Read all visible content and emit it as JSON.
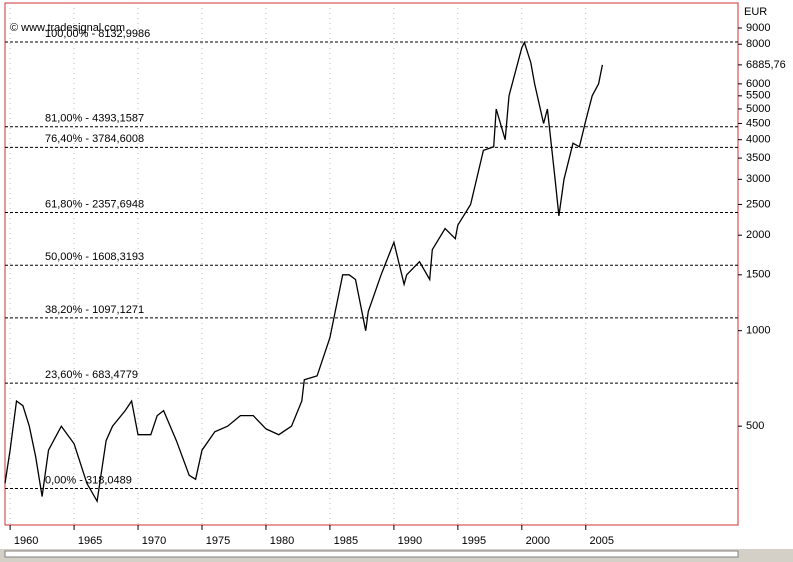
{
  "chart_data": {
    "type": "line",
    "log_y": true,
    "copyright": "© www.tradesignal.com",
    "y_axis_label": "EUR",
    "color": "#000000",
    "x": [
      1959.6,
      1960,
      1960.5,
      1961,
      1961.5,
      1962,
      1962.5,
      1963,
      1964,
      1965,
      1966,
      1966.8,
      1967.5,
      1968,
      1969,
      1969.5,
      1970,
      1971,
      1971.5,
      1972,
      1973,
      1974,
      1974.5,
      1975,
      1976,
      1977,
      1978,
      1979,
      1980,
      1981,
      1982,
      1982.8,
      1983,
      1984,
      1985,
      1986,
      1986.5,
      1987,
      1987.8,
      1988,
      1989,
      1990,
      1990.8,
      1991,
      1992,
      1992.8,
      1993,
      1994,
      1994.8,
      1995,
      1996,
      1997,
      1997.8,
      1998,
      1998.7,
      1999,
      2000,
      2000.2,
      2000.7,
      2001,
      2001.7,
      2002,
      2002.6,
      2002.9,
      2003.3,
      2004,
      2004.5,
      2005,
      2005.5,
      2006,
      2006.3
    ],
    "values": [
      330,
      420,
      600,
      580,
      500,
      400,
      300,
      420,
      500,
      440,
      330,
      290,
      450,
      500,
      560,
      600,
      470,
      470,
      540,
      560,
      450,
      350,
      340,
      420,
      480,
      500,
      540,
      540,
      490,
      470,
      500,
      600,
      700,
      720,
      950,
      1500,
      1500,
      1450,
      1000,
      1150,
      1500,
      1900,
      1400,
      1500,
      1650,
      1450,
      1800,
      2100,
      1950,
      2150,
      2500,
      3700,
      3800,
      5000,
      4000,
      5500,
      7800,
      8100,
      7000,
      6000,
      4500,
      5000,
      3000,
      2300,
      3000,
      3900,
      3800,
      4600,
      5500,
      6000,
      6885.76
    ],
    "last_price": {
      "value": 6885.76,
      "label": "6885,76"
    },
    "levels": [
      {
        "value": 8132.9986,
        "label": "100,00% - 8132,9986"
      },
      {
        "value": 4393.1587,
        "label": "81,00% - 4393,1587"
      },
      {
        "value": 3784.6008,
        "label": "76,40% - 3784,6008"
      },
      {
        "value": 2357.6948,
        "label": "61,80% - 2357,6948"
      },
      {
        "value": 1608.3193,
        "label": "50,00% - 1608,3193"
      },
      {
        "value": 1097.1271,
        "label": "38,20% - 1097,1271"
      },
      {
        "value": 683.4779,
        "label": "23,60% - 683,4779"
      },
      {
        "value": 318.0489,
        "label": "0,00% - 318,0489"
      }
    ],
    "xlim": [
      1959.6,
      2016.9
    ],
    "xticks": [
      1960,
      1965,
      1970,
      1975,
      1980,
      1985,
      1990,
      1995,
      2000,
      2005
    ],
    "ylim": [
      244,
      10790
    ],
    "yticks": [
      9000,
      8000,
      6000,
      5500,
      5000,
      4500,
      4000,
      3500,
      3000,
      2500,
      2000,
      1500,
      1000,
      500
    ]
  }
}
